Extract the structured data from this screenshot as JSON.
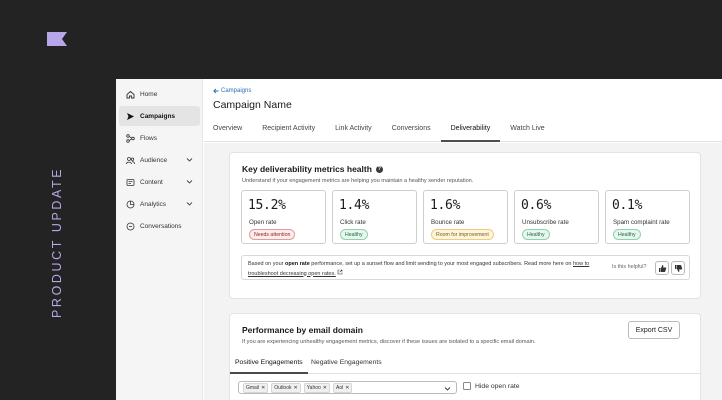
{
  "brand": {
    "tagline": "PRODUCT UPDATE",
    "logo_color": "#b7a6e8",
    "accent": "#b7a6e8"
  },
  "sidebar": {
    "items": [
      {
        "label": "Home",
        "icon": "home-icon",
        "active": false,
        "expandable": false
      },
      {
        "label": "Campaigns",
        "icon": "send-icon",
        "active": true,
        "expandable": false
      },
      {
        "label": "Flows",
        "icon": "flows-icon",
        "active": false,
        "expandable": false
      },
      {
        "label": "Audience",
        "icon": "audience-icon",
        "active": false,
        "expandable": true
      },
      {
        "label": "Content",
        "icon": "content-icon",
        "active": false,
        "expandable": true
      },
      {
        "label": "Analytics",
        "icon": "analytics-icon",
        "active": false,
        "expandable": true
      },
      {
        "label": "Conversations",
        "icon": "conversations-icon",
        "active": false,
        "expandable": false
      }
    ]
  },
  "header": {
    "back_label": "Campaigns",
    "title": "Campaign Name",
    "tabs": [
      "Overview",
      "Recipient Activity",
      "Link Activity",
      "Conversions",
      "Deliverability",
      "Watch Live"
    ],
    "active_tab": "Deliverability"
  },
  "health": {
    "title": "Key deliverability metrics health",
    "subtitle": "Understand if your engagement metrics are helping you maintain a healthy sender reputation.",
    "metrics": [
      {
        "value": "15.2%",
        "label": "Open rate",
        "status": "Needs attention",
        "tone": "bad"
      },
      {
        "value": "1.4%",
        "label": "Click rate",
        "status": "Healthy",
        "tone": "good"
      },
      {
        "value": "1.6%",
        "label": "Bounce rate",
        "status": "Room for improvement",
        "tone": "warn"
      },
      {
        "value": "0.6%",
        "label": "Unsubscribe rate",
        "status": "Healthy",
        "tone": "good"
      },
      {
        "value": "0.1%",
        "label": "Spam complaint rate",
        "status": "Healthy",
        "tone": "good"
      }
    ],
    "advice": {
      "prefix": "Based on your ",
      "highlight": "open rate",
      "middle": " performance, set up a sunset flow and limit sending to your most engaged subscribers. Read more here on ",
      "link": "how to troubleshoot decreasing open rates.",
      "helpful": "Is this helpful?"
    }
  },
  "domain": {
    "title": "Performance by email domain",
    "subtitle": "If you are experiencing unhealthy engagement metrics, discover if these issues are isolated to a specific email domain.",
    "export_label": "Export CSV",
    "tabs": [
      "Positive Engagements",
      "Negative Engagements"
    ],
    "active_tab": "Positive Engagements",
    "chips": [
      "Gmail",
      "Outlook",
      "Yahoo",
      "Aol"
    ],
    "hide_label": "Hide open rate"
  }
}
